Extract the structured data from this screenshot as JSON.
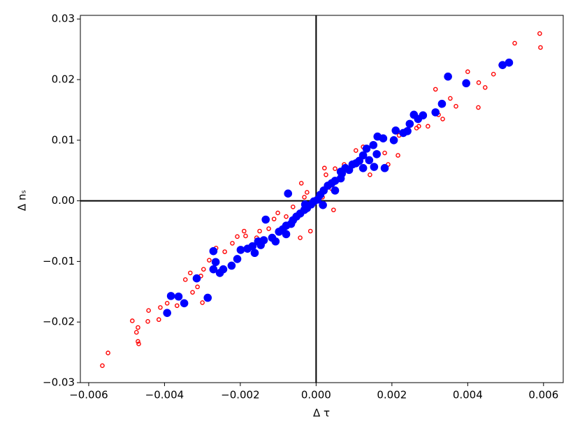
{
  "chart_data": {
    "type": "scatter",
    "x_label": "Δ τ",
    "y_label": "Δ nₛ",
    "xlim": [
      -0.00622,
      0.00652
    ],
    "ylim": [
      -0.03,
      0.0306
    ],
    "xticks": [
      {
        "value": -0.006,
        "label": "−0.006"
      },
      {
        "value": -0.004,
        "label": "−0.004"
      },
      {
        "value": -0.002,
        "label": "−0.002"
      },
      {
        "value": 0,
        "label": "0.000"
      },
      {
        "value": 0.002,
        "label": "0.002"
      },
      {
        "value": 0.004,
        "label": "0.004"
      },
      {
        "value": 0.006,
        "label": "0.006"
      }
    ],
    "yticks": [
      {
        "value": -0.03,
        "label": "−0.03"
      },
      {
        "value": -0.02,
        "label": "−0.02"
      },
      {
        "value": -0.01,
        "label": "−0.01"
      },
      {
        "value": 0,
        "label": "0.00"
      },
      {
        "value": 0.01,
        "label": "0.01"
      },
      {
        "value": 0.02,
        "label": "0.02"
      },
      {
        "value": 0.03,
        "label": "0.03"
      }
    ],
    "reference_lines": {
      "x": 0,
      "y": 0
    },
    "series": [
      {
        "color": "#ff0000",
        "marker": "hollow",
        "x": [
          0.0059,
          0.00592,
          0.00524,
          0.00468,
          0.00487,
          0.004,
          0.00429,
          0.00446,
          0.00428,
          0.00369,
          0.00315,
          0.00334,
          0.00295,
          0.00323,
          0.00262,
          0.00219,
          0.00265,
          0.00216,
          0.00181,
          0.00124,
          0.00105,
          0.00074,
          0.0005,
          0.00026,
          0.00022,
          0.00041,
          0.00046,
          0.00017,
          -0.00024,
          -0.00031,
          -0.00061,
          -0.00079,
          -0.00101,
          -0.00111,
          -0.00125,
          -0.00149,
          -0.00157,
          -0.00186,
          -0.00208,
          -0.00221,
          -0.00241,
          -0.00264,
          -0.00282,
          -0.00297,
          -0.00304,
          -0.00332,
          -0.00345,
          -0.00313,
          -0.003,
          -0.00326,
          -0.00367,
          -0.00393,
          -0.00411,
          -0.00415,
          -0.00442,
          -0.00444,
          -0.0047,
          -0.00474,
          -0.0047,
          -0.00468,
          -0.00485,
          -0.00549,
          -0.00564,
          -0.00039,
          -0.00015,
          -0.00042,
          -0.0019,
          0.00142,
          0.0019,
          0.00271,
          0.00354
        ],
        "y": [
          0.0276,
          0.0253,
          0.026,
          0.0209,
          0.0224,
          0.0213,
          0.0195,
          0.0187,
          0.0154,
          0.0156,
          0.0184,
          0.0135,
          0.0123,
          0.0142,
          0.0139,
          0.0108,
          0.012,
          0.0075,
          0.0079,
          0.0089,
          0.0083,
          0.006,
          0.0053,
          0.0043,
          0.0054,
          0.002,
          -0.0015,
          0.0006,
          0.0014,
          0.0006,
          -0.001,
          -0.0026,
          -0.002,
          -0.003,
          -0.0046,
          -0.005,
          -0.0061,
          -0.0058,
          -0.0059,
          -0.007,
          -0.0084,
          -0.0078,
          -0.0098,
          -0.0113,
          -0.0124,
          -0.0119,
          -0.013,
          -0.0142,
          -0.0168,
          -0.0151,
          -0.0173,
          -0.0169,
          -0.0176,
          -0.0196,
          -0.0181,
          -0.0199,
          -0.0209,
          -0.0217,
          -0.0232,
          -0.0236,
          -0.0198,
          -0.0251,
          -0.0272,
          0.0029,
          -0.005,
          -0.0061,
          -0.005,
          0.0043,
          0.006,
          0.0123,
          0.0169
        ]
      },
      {
        "color": "#0000ff",
        "marker": "filled",
        "x": [
          0.00509,
          0.00492,
          0.00348,
          0.00396,
          0.00332,
          0.00315,
          0.00282,
          0.00269,
          0.00258,
          0.00247,
          0.00241,
          0.0021,
          0.00205,
          0.00177,
          0.00162,
          0.00151,
          0.0016,
          0.00153,
          0.00181,
          0.0014,
          0.00124,
          0.00114,
          0.00105,
          0.00096,
          0.00087,
          0.00077,
          0.00068,
          0.00065,
          0.0005,
          0.00041,
          0.00031,
          0.0002,
          0.00011,
          4e-05,
          -6e-05,
          -0.00013,
          -0.00024,
          -0.00031,
          -0.00042,
          -0.00052,
          -0.00061,
          -0.00066,
          -0.00079,
          -0.00088,
          -0.00098,
          -0.00116,
          -0.00133,
          -0.00074,
          -0.00138,
          -0.00153,
          -0.00168,
          -0.00146,
          -0.00181,
          -0.00199,
          -0.00208,
          -0.00223,
          -0.00245,
          -0.00271,
          -0.00271,
          -0.00265,
          -0.00254,
          -0.00286,
          -0.00315,
          -0.00363,
          -0.00383,
          -0.00393,
          -0.00348,
          -0.00079,
          -0.00107,
          -0.00162,
          -0.00029,
          0.0005,
          0.00018,
          0.00065,
          0.00133,
          0.0023,
          0.00124
        ],
        "y": [
          0.0228,
          0.0224,
          0.0205,
          0.0194,
          0.016,
          0.0146,
          0.0141,
          0.0135,
          0.0142,
          0.0127,
          0.0115,
          0.0116,
          0.01,
          0.0103,
          0.0106,
          0.0092,
          0.0077,
          0.0056,
          0.0054,
          0.0067,
          0.0075,
          0.0066,
          0.0062,
          0.006,
          0.0051,
          0.0054,
          0.0045,
          0.0037,
          0.0033,
          0.0029,
          0.0025,
          0.0017,
          0.001,
          0.0002,
          -0.0001,
          -0.0006,
          -0.0012,
          -0.0015,
          -0.0021,
          -0.0026,
          -0.0032,
          -0.0038,
          -0.0041,
          -0.0047,
          -0.0051,
          -0.0061,
          -0.0031,
          0.0012,
          -0.0065,
          -0.0067,
          -0.0075,
          -0.0073,
          -0.0079,
          -0.0081,
          -0.0096,
          -0.0107,
          -0.0113,
          -0.0083,
          -0.0113,
          -0.0101,
          -0.0119,
          -0.016,
          -0.0128,
          -0.0158,
          -0.0157,
          -0.0185,
          -0.0169,
          -0.0055,
          -0.0067,
          -0.0086,
          -0.0006,
          0.0017,
          -0.0007,
          0.0048,
          0.0086,
          0.0112,
          0.0054
        ]
      }
    ]
  }
}
